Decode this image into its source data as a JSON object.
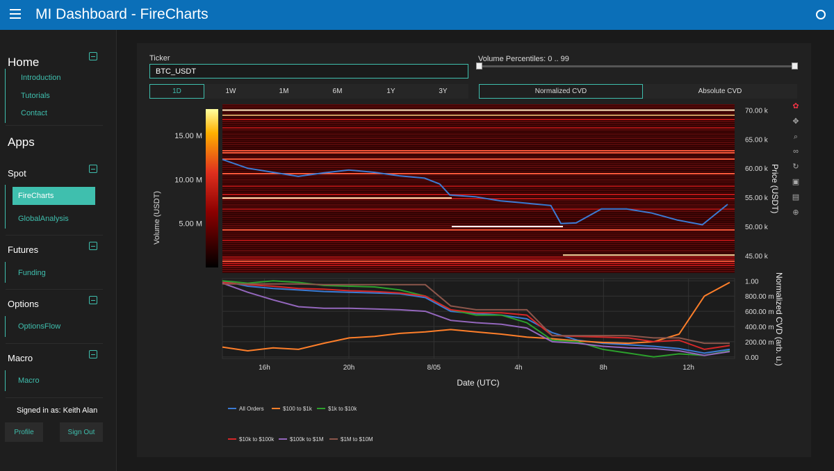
{
  "header": {
    "title": "MI Dashboard  -  FireCharts"
  },
  "sidebar": {
    "home": {
      "title": "Home",
      "items": [
        "Introduction",
        "Tutorials",
        "Contact"
      ]
    },
    "apps_title": "Apps",
    "spot": {
      "title": "Spot",
      "items": [
        "FireCharts",
        "GlobalAnalysis"
      ],
      "active": "FireCharts"
    },
    "futures": {
      "title": "Futures",
      "items": [
        "Funding"
      ]
    },
    "options": {
      "title": "Options",
      "items": [
        "OptionsFlow"
      ]
    },
    "macro": {
      "title": "Macro",
      "items": [
        "Macro"
      ]
    },
    "signed_in": "Signed in as: Keith Alan",
    "profile_label": "Profile",
    "signout_label": "Sign Out"
  },
  "controls": {
    "ticker_label": "Ticker",
    "ticker_value": "BTC_USDT",
    "ranges": [
      "1D",
      "1W",
      "1M",
      "6M",
      "1Y",
      "3Y"
    ],
    "active_range": "1D",
    "percentile_label": "Volume Percentiles: 0 .. 99",
    "percentile_range": [
      0,
      99
    ],
    "cvd_modes": [
      "Normalized CVD",
      "Absolute CVD"
    ],
    "active_cvd_mode": "Normalized CVD"
  },
  "colors": {
    "accent": "#3fbfae",
    "header": "#0b6fb8",
    "price_line": "#3b7bd4",
    "series": [
      "#3b7bd4",
      "#ff7f2a",
      "#2ca02c",
      "#d62728",
      "#9467bd",
      "#8c564b"
    ]
  },
  "toolbar_icons": [
    "plotly-logo-icon",
    "pan-icon",
    "zoom-icon",
    "lasso-icon",
    "reset-icon",
    "download-icon",
    "comment-icon",
    "crosshair-icon"
  ],
  "chart_data": [
    {
      "type": "heatmap",
      "title": "",
      "ylabel": "Price (USDT)",
      "colorbar_label": "Volume (USDT)",
      "colorbar_ticks": [
        "5.00 M",
        "10.00 M",
        "15.00 M"
      ],
      "colorbar_values": [
        5,
        10,
        15
      ],
      "colorbar_max": 18,
      "yticks": [
        "45.00 k",
        "50.00 k",
        "55.00 k",
        "60.00 k",
        "65.00 k",
        "70.00 k"
      ],
      "ytick_values": [
        45,
        50,
        55,
        60,
        65,
        70
      ],
      "ylim": [
        42,
        71
      ],
      "price_series": {
        "name": "Price",
        "x": [
          0,
          0.05,
          0.1,
          0.15,
          0.2,
          0.25,
          0.3,
          0.35,
          0.4,
          0.43,
          0.45,
          0.5,
          0.55,
          0.6,
          0.65,
          0.67,
          0.7,
          0.75,
          0.8,
          0.85,
          0.9,
          0.95,
          1.0
        ],
        "y": [
          61.5,
          60,
          59.3,
          58.6,
          59.2,
          59.7,
          59.3,
          58.7,
          58.3,
          57.3,
          55.4,
          55.1,
          54.4,
          54.0,
          53.6,
          50.5,
          50.6,
          53.0,
          53.0,
          52.3,
          51.1,
          50.3,
          53.8
        ]
      }
    },
    {
      "type": "line",
      "xlabel": "Date (UTC)",
      "ylabel": "Normalized CVD (arb. u.)",
      "xticks": [
        "16h",
        "20h",
        "8/05",
        "4h",
        "8h",
        "12h"
      ],
      "xtick_positions": [
        0.082,
        0.247,
        0.413,
        0.578,
        0.744,
        0.91
      ],
      "yticks": [
        "0.00",
        "200.00 m",
        "400.00 m",
        "600.00 m",
        "800.00 m",
        "1.00"
      ],
      "ytick_values": [
        0,
        0.2,
        0.4,
        0.6,
        0.8,
        1.0
      ],
      "ylim": [
        -0.02,
        1.03
      ],
      "x": [
        0,
        0.05,
        0.1,
        0.15,
        0.2,
        0.25,
        0.3,
        0.35,
        0.4,
        0.45,
        0.5,
        0.55,
        0.6,
        0.65,
        0.7,
        0.75,
        0.8,
        0.85,
        0.9,
        0.95,
        1.0
      ],
      "series": [
        {
          "name": "All Orders",
          "values": [
            1.0,
            0.93,
            0.9,
            0.88,
            0.86,
            0.85,
            0.84,
            0.83,
            0.78,
            0.6,
            0.57,
            0.55,
            0.5,
            0.32,
            0.22,
            0.18,
            0.16,
            0.14,
            0.11,
            0.05,
            0.1
          ]
        },
        {
          "name": "$100 to $1k",
          "values": [
            0.13,
            0.08,
            0.12,
            0.1,
            0.18,
            0.25,
            0.27,
            0.31,
            0.33,
            0.36,
            0.33,
            0.3,
            0.26,
            0.24,
            0.21,
            0.19,
            0.18,
            0.2,
            0.3,
            0.8,
            0.98
          ]
        },
        {
          "name": "$1k to $10k",
          "values": [
            1.0,
            0.97,
            1.0,
            0.98,
            0.94,
            0.93,
            0.92,
            0.88,
            0.8,
            0.62,
            0.55,
            0.55,
            0.45,
            0.22,
            0.2,
            0.1,
            0.05,
            0.0,
            0.04,
            0.02,
            0.08
          ]
        },
        {
          "name": "$10k to $100k",
          "values": [
            0.98,
            0.95,
            0.93,
            0.9,
            0.89,
            0.87,
            0.86,
            0.84,
            0.8,
            0.62,
            0.58,
            0.58,
            0.55,
            0.28,
            0.27,
            0.26,
            0.25,
            0.2,
            0.22,
            0.1,
            0.15
          ]
        },
        {
          "name": "$100k to $1M",
          "values": [
            0.97,
            0.85,
            0.75,
            0.66,
            0.64,
            0.64,
            0.63,
            0.62,
            0.6,
            0.48,
            0.45,
            0.43,
            0.38,
            0.2,
            0.18,
            0.14,
            0.12,
            0.11,
            0.08,
            0.02,
            0.07
          ]
        },
        {
          "name": "$1M to $10M",
          "values": [
            0.96,
            0.96,
            0.96,
            0.96,
            0.95,
            0.95,
            0.95,
            0.95,
            0.95,
            0.67,
            0.62,
            0.62,
            0.62,
            0.28,
            0.28,
            0.28,
            0.28,
            0.25,
            0.25,
            0.18,
            0.18
          ]
        }
      ],
      "legend": [
        "All Orders",
        "$100 to $1k",
        "$1k to $10k",
        "$10k to $100k",
        "$100k to $1M",
        "$1M to $10M"
      ],
      "legend_position": "bottom-left"
    }
  ]
}
